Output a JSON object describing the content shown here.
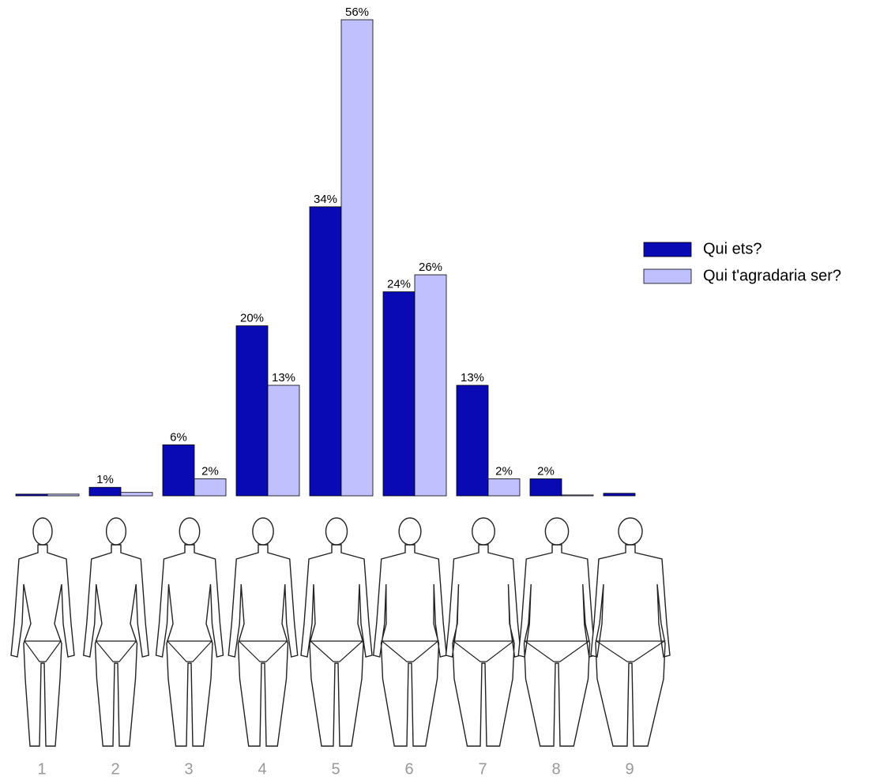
{
  "chart_data": {
    "type": "bar",
    "categories": [
      "1",
      "2",
      "3",
      "4",
      "5",
      "6",
      "7",
      "8",
      "9"
    ],
    "series": [
      {
        "name": "Qui ets?",
        "color": "#0a0ab4",
        "values": [
          0.2,
          1,
          6,
          20,
          34,
          24,
          13,
          2,
          0.3
        ],
        "value_labels": [
          null,
          "1%",
          "6%",
          "20%",
          "34%",
          "24%",
          "13%",
          "2%",
          null
        ]
      },
      {
        "name": "Qui t'agradaria ser?",
        "color": "#c0c0ff",
        "values": [
          0.2,
          0.4,
          2,
          13,
          56,
          26,
          2,
          0.1,
          0
        ],
        "value_labels": [
          null,
          null,
          "2%",
          "13%",
          "56%",
          "26%",
          "2%",
          null,
          null
        ]
      }
    ],
    "legend": "right"
  }
}
